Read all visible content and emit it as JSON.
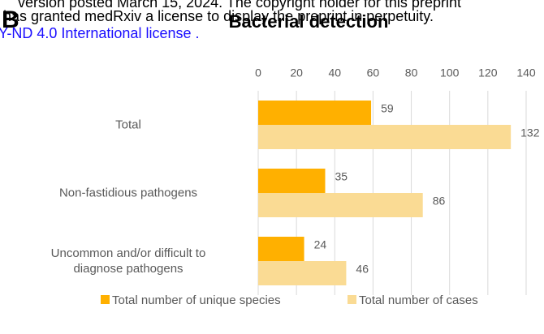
{
  "chart_data": {
    "type": "hbar",
    "title": "Bacterial detection",
    "panel_label": "B",
    "annotations": [
      "version posted March 15, 2024. The copyright holder for this preprint",
      "has granted medRxiv a license to display the preprint in perpetuity.",
      "Y-ND 4.0 International license ."
    ],
    "categories": [
      "Total",
      "Non-fastidious pathogens",
      "Uncommon and/or difficult to\ndiagnose pathogens"
    ],
    "series": [
      {
        "name": "Total number of unique species",
        "color": "#FFB000",
        "values": [
          59,
          35,
          24
        ]
      },
      {
        "name": "Total number of cases",
        "color": "#FADB94",
        "values": [
          132,
          86,
          46
        ]
      }
    ],
    "xlim": [
      0,
      140
    ],
    "xticks": [
      0,
      20,
      40,
      60,
      80,
      100,
      120,
      140
    ],
    "grid": true,
    "legend": "bottom"
  }
}
